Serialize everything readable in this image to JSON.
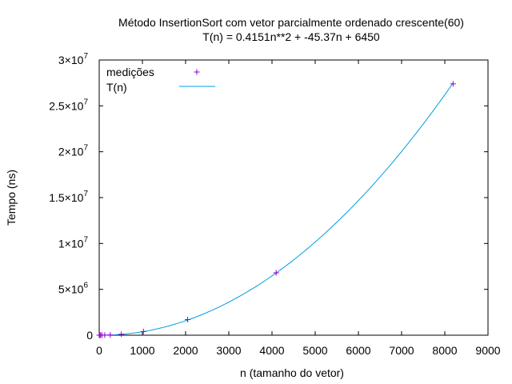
{
  "chart_data": {
    "type": "scatter",
    "title": "Método InsertionSort com vetor parcialmente ordenado crescente(60)",
    "subtitle": "T(n) = 0.4151n**2 + -45.37n + 6450",
    "xlabel": "n (tamanho do vetor)",
    "ylabel": "Tempo (ns)",
    "xlim": [
      0,
      9000
    ],
    "ylim": [
      0,
      30000000
    ],
    "x_ticks": [
      "0",
      "1000",
      "2000",
      "3000",
      "4000",
      "5000",
      "6000",
      "7000",
      "8000",
      "9000"
    ],
    "y_ticks": [
      {
        "mant": "0",
        "exp": ""
      },
      {
        "mant": "5×10",
        "exp": "6"
      },
      {
        "mant": "1×10",
        "exp": "7"
      },
      {
        "mant": "1.5×10",
        "exp": "7"
      },
      {
        "mant": "2×10",
        "exp": "7"
      },
      {
        "mant": "2.5×10",
        "exp": "7"
      },
      {
        "mant": "3×10",
        "exp": "7"
      }
    ],
    "grid": false,
    "legend_position": "top-left",
    "series": [
      {
        "name": "medições",
        "kind": "points",
        "marker": "+",
        "color": "#9400d3",
        "x": [
          1,
          2,
          4,
          8,
          16,
          32,
          64,
          128,
          256,
          512,
          1024,
          2048,
          4096,
          8192
        ],
        "y": [
          500,
          600,
          800,
          1200,
          2000,
          5000,
          8000,
          10000,
          30000,
          100000,
          400000,
          1700000,
          6800000,
          27400000
        ]
      },
      {
        "name": "T(n)",
        "kind": "function",
        "color": "#009ee0",
        "coefficients": {
          "a": 0.4151,
          "b": -45.37,
          "c": 6450
        },
        "domain": [
          0,
          8192
        ]
      }
    ]
  }
}
